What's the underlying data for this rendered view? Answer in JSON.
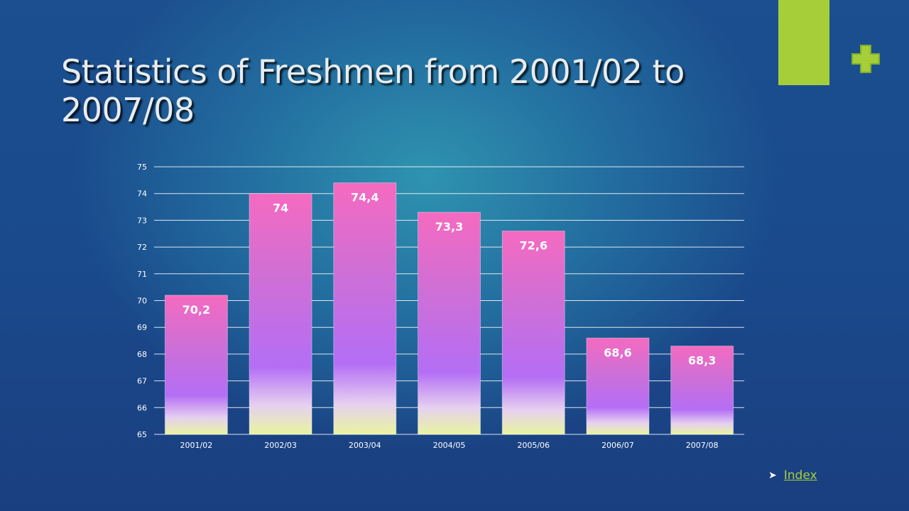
{
  "slide": {
    "title": "Statistics of Freshmen from 2001/02 to 2007/08",
    "index_link": "Index",
    "colors": {
      "accent": "#a6ce39",
      "background": "#1a4a8c",
      "bar_top": "#f56ac0",
      "bar_mid": "#b46ef5",
      "bar_bottom": "#e8f4a0"
    }
  },
  "chart_data": {
    "type": "bar",
    "categories": [
      "2001/02",
      "2002/03",
      "2003/04",
      "2004/05",
      "2005/06",
      "2006/07",
      "2007/08"
    ],
    "values": [
      70.2,
      74,
      74.4,
      73.3,
      72.6,
      68.6,
      68.3
    ],
    "data_labels": [
      "70,2",
      "74",
      "74,4",
      "73,3",
      "72,6",
      "68,6",
      "68,3"
    ],
    "y_ticks": [
      65,
      66,
      67,
      68,
      69,
      70,
      71,
      72,
      73,
      74,
      75
    ],
    "ylim": [
      65,
      75
    ],
    "grid": true,
    "legend": "none"
  }
}
